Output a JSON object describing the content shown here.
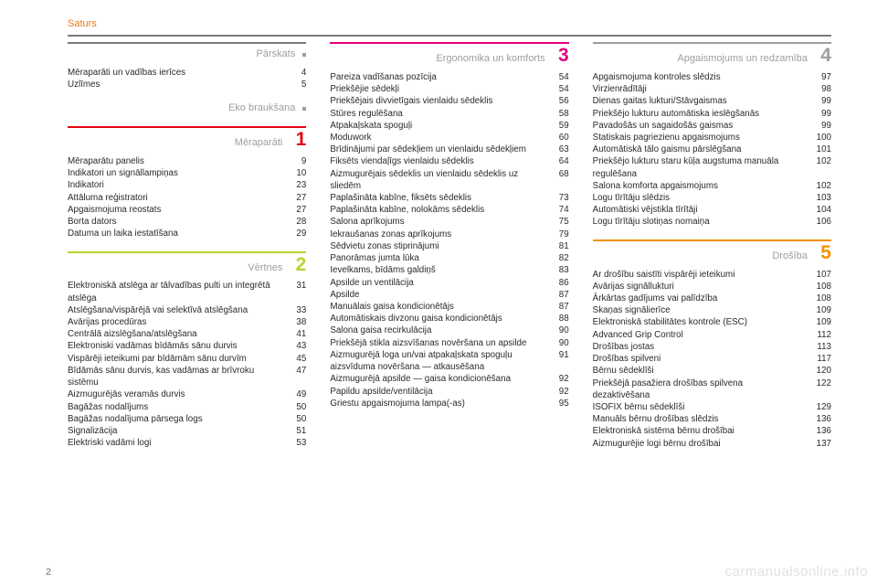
{
  "header_title": "Saturs",
  "page_number": "2",
  "watermark": "carmanualsonline.info",
  "header_rule_color": "#7a7a7a",
  "columns": [
    {
      "sections": [
        {
          "title": "Pārskats",
          "number": "",
          "show_dot": true,
          "rule_color": "#7a7a7a",
          "num_color": "#9e9e9e",
          "entries": [
            {
              "label": "Mēraparāti un vadības ierīces",
              "page": "4"
            },
            {
              "label": "Uzlīmes",
              "page": "5"
            }
          ]
        },
        {
          "title": "Eko braukšana",
          "number": "",
          "show_dot": true,
          "rule_color": "",
          "num_color": "#9e9e9e",
          "entries": []
        },
        {
          "title": "Mēraparāti",
          "number": "1",
          "show_dot": false,
          "rule_color": "#e30613",
          "num_color": "#e30613",
          "entries": [
            {
              "label": "Mēraparātu panelis",
              "page": "9"
            },
            {
              "label": "Indikatori un signāllampiņas",
              "page": "10"
            },
            {
              "label": "Indikatori",
              "page": "23"
            },
            {
              "label": "Attāluma reģistratori",
              "page": "27"
            },
            {
              "label": "Apgaismojuma reostats",
              "page": "27"
            },
            {
              "label": "Borta dators",
              "page": "28"
            },
            {
              "label": "Datuma un laika iestatīšana",
              "page": "29"
            }
          ]
        },
        {
          "title": "Vērtnes",
          "number": "2",
          "show_dot": false,
          "rule_color": "#b8d432",
          "num_color": "#b8d432",
          "entries": [
            {
              "label": "Elektroniskā atslēga ar tālvadības pulti un integrētā atslēga",
              "page": "31"
            },
            {
              "label": "Atslēgšana/vispārējā vai selektīvā atslēgšana",
              "page": "33"
            },
            {
              "label": "Avārijas procedūras",
              "page": "38"
            },
            {
              "label": "Centrālā aizslēgšana/atslēgšana",
              "page": "41"
            },
            {
              "label": "Elektroniski vadāmas bīdāmās sānu durvis",
              "page": "43"
            },
            {
              "label": "Vispārēji ieteikumi par bīdāmām sānu durvīm",
              "page": "45"
            },
            {
              "label": "Bīdāmās sānu durvis, kas vadāmas ar brīvroku sistēmu",
              "page": "47"
            },
            {
              "label": "Aizmugurējās veramās durvis",
              "page": "49"
            },
            {
              "label": "Bagāžas nodalījums",
              "page": "50"
            },
            {
              "label": "Bagāžas nodalījuma pārsega logs",
              "page": "50"
            },
            {
              "label": "Signalizācija",
              "page": "51"
            },
            {
              "label": "Elektriski vadāmi logi",
              "page": "53"
            }
          ]
        }
      ]
    },
    {
      "sections": [
        {
          "title": "Ergonomika un komforts",
          "number": "3",
          "show_dot": false,
          "rule_color": "#e6007e",
          "num_color": "#e6007e",
          "entries": [
            {
              "label": "Pareiza vadīšanas pozīcija",
              "page": "54"
            },
            {
              "label": "Priekšējie sēdekļi",
              "page": "54"
            },
            {
              "label": "Priekšējais divvietīgais vienlaidu sēdeklis",
              "page": "56"
            },
            {
              "label": "Stūres regulēšana",
              "page": "58"
            },
            {
              "label": "Atpakaļskata spoguļi",
              "page": "59"
            },
            {
              "label": "Moduwork",
              "page": "60"
            },
            {
              "label": "Brīdinājumi par sēdekļiem un vienlaidu sēdekļiem",
              "page": "63"
            },
            {
              "label": "Fiksēts viendaļīgs vienlaidu sēdeklis",
              "page": "64"
            },
            {
              "label": "Aizmugurējais sēdeklis un vienlaidu sēdeklis uz sliedēm",
              "page": "68"
            },
            {
              "label": "Paplašināta kabīne, fiksēts sēdeklis",
              "page": "73"
            },
            {
              "label": "Paplašināta kabīne, nolokāms sēdeklis",
              "page": "74"
            },
            {
              "label": "Salona aprīkojums",
              "page": "75"
            },
            {
              "label": "Iekraušanas zonas aprīkojums",
              "page": "79"
            },
            {
              "label": "Sēdvietu zonas stiprinājumi",
              "page": "81"
            },
            {
              "label": "Panorāmas jumta lūka",
              "page": "82"
            },
            {
              "label": "Ievelkams, bīdāms galdiņš",
              "page": "83"
            },
            {
              "label": "Apsilde un ventilācija",
              "page": "86"
            },
            {
              "label": "Apsilde",
              "page": "87"
            },
            {
              "label": "Manuālais gaisa kondicionētājs",
              "page": "87"
            },
            {
              "label": "Automātiskais divzonu gaisa kondicionētājs",
              "page": "88"
            },
            {
              "label": "Salona gaisa recirkulācija",
              "page": "90"
            },
            {
              "label": "Priekšējā stikla aizsvīšanas novēršana un apsilde",
              "page": "90"
            },
            {
              "label": "Aizmugurējā loga un/vai atpakaļskata spoguļu aizsvīduma novēršana — atkausēšana",
              "page": "91"
            },
            {
              "label": "Aizmugurējā apsilde — gaisa kondicionēšana",
              "page": "92"
            },
            {
              "label": "Papildu apsilde/ventilācija",
              "page": "92"
            },
            {
              "label": "Griestu apgaismojuma lampa(-as)",
              "page": "95"
            }
          ]
        }
      ]
    },
    {
      "sections": [
        {
          "title": "Apgaismojums un redzamība",
          "number": "4",
          "show_dot": false,
          "rule_color": "#9e9e9e",
          "num_color": "#9e9e9e",
          "entries": [
            {
              "label": "Apgaismojuma kontroles slēdzis",
              "page": "97"
            },
            {
              "label": "Virzienrādītāji",
              "page": "98"
            },
            {
              "label": "Dienas gaitas lukturi/Stāvgaismas",
              "page": "99"
            },
            {
              "label": "Priekšējo lukturu automātiska ieslēgšanās",
              "page": "99"
            },
            {
              "label": "Pavadošās un sagaidošās gaismas",
              "page": "99"
            },
            {
              "label": "Statiskais pagriezienu apgaismojums",
              "page": "100"
            },
            {
              "label": "Automātiskā tālo gaismu pārslēgšana",
              "page": "101"
            },
            {
              "label": "Priekšējo lukturu staru kūļa augstuma manuāla regulēšana",
              "page": "102"
            },
            {
              "label": "Salona komforta apgaismojums",
              "page": "102"
            },
            {
              "label": "Logu tīrītāju slēdzis",
              "page": "103"
            },
            {
              "label": "Automātiski vējstikla tīrītāji",
              "page": "104"
            },
            {
              "label": "Logu tīrītāju slotiņas nomaiņa",
              "page": "106"
            }
          ]
        },
        {
          "title": "Drošība",
          "number": "5",
          "show_dot": false,
          "rule_color": "#f39200",
          "num_color": "#f39200",
          "entries": [
            {
              "label": "Ar drošību saistīti vispārēji ieteikumi",
              "page": "107"
            },
            {
              "label": "Avārijas signāllukturi",
              "page": "108"
            },
            {
              "label": "Ārkārtas gadījums vai palīdzība",
              "page": "108"
            },
            {
              "label": "Skaņas signālierīce",
              "page": "109"
            },
            {
              "label": "Elektroniskā stabilitātes kontrole (ESC)",
              "page": "109"
            },
            {
              "label": "Advanced Grip Control",
              "page": "112"
            },
            {
              "label": "Drošības jostas",
              "page": "113"
            },
            {
              "label": "Drošības spilveni",
              "page": "117"
            },
            {
              "label": "Bērnu sēdeklīši",
              "page": "120"
            },
            {
              "label": "Priekšējā pasažiera drošības spilvena dezaktivēšana",
              "page": "122"
            },
            {
              "label": "ISOFIX bērnu sēdeklīši",
              "page": "129"
            },
            {
              "label": "Manuāls bērnu drošības slēdzis",
              "page": "136"
            },
            {
              "label": "Elektroniskā sistēma bērnu drošībai",
              "page": "136"
            },
            {
              "label": "Aizmugurējie logi bērnu drošībai",
              "page": "137"
            }
          ]
        }
      ]
    }
  ]
}
